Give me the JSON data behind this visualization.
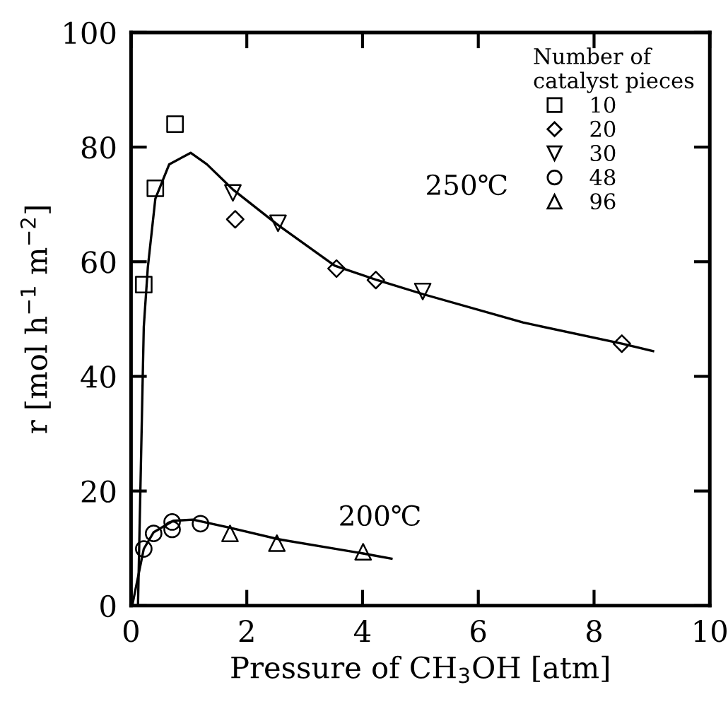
{
  "chart_data": {
    "type": "scatter",
    "xlabel": "Pressure of CH$_{3}$OH [atm]",
    "ylabel": "r [mol h$^{−1}$ m$^{−2}$]",
    "legend_title": "Number of\ncatalyst pieces",
    "legend": "top right",
    "grid": false,
    "xlim": [
      0,
      10
    ],
    "ylim": [
      0,
      100
    ],
    "xticks": [
      0,
      2,
      4,
      6,
      8,
      10
    ],
    "yticks": [
      0,
      20,
      40,
      60,
      80,
      100
    ],
    "series": [
      {
        "name": "10",
        "marker": "square",
        "color": "#000000",
        "x": [
          0.22,
          0.42,
          0.76
        ],
        "values": [
          56,
          72.8,
          84
        ]
      },
      {
        "name": "20",
        "marker": "diamond",
        "color": "#000000",
        "x": [
          1.8,
          3.55,
          4.23,
          8.48
        ],
        "values": [
          67.4,
          58.8,
          56.8,
          45.7
        ]
      },
      {
        "name": "30",
        "marker": "triangle_down",
        "color": "#000000",
        "x": [
          1.76,
          2.54,
          5.04
        ],
        "values": [
          72,
          66.7,
          54.8
        ]
      },
      {
        "name": "48",
        "marker": "circle",
        "color": "#000000",
        "x": [
          0.22,
          0.39,
          0.71,
          0.71,
          1.2
        ],
        "values": [
          9.9,
          12.6,
          14.6,
          13.3,
          14.3
        ]
      },
      {
        "name": "96",
        "marker": "triangle",
        "color": "#000000",
        "x": [
          1.71,
          2.52,
          4.01
        ],
        "values": [
          12.6,
          10.9,
          9.4
        ]
      },
      {
        "type": "line",
        "marker": "none",
        "color": "#000000",
        "x": [
          0.12,
          0.22,
          0.29,
          0.42,
          0.66,
          1.03,
          1.31,
          1.76,
          2.54,
          3.52,
          4.25,
          5.06,
          6.77,
          8.48,
          9.02
        ],
        "values": [
          0,
          48.6,
          59,
          71,
          77,
          79,
          77,
          72.6,
          66.4,
          59.3,
          56.8,
          54.3,
          49.4,
          45.7,
          44.4
        ]
      },
      {
        "type": "line",
        "marker": "none",
        "color": "#000000",
        "x": [
          0.02,
          0.22,
          0.39,
          0.73,
          1.07,
          1.71,
          2.54,
          4.01,
          4.5
        ],
        "values": [
          0,
          9.9,
          12.8,
          14.8,
          15,
          13.6,
          11.6,
          9.1,
          8.2
        ]
      }
    ],
    "annotations": [
      "250℃",
      "200℃"
    ]
  }
}
